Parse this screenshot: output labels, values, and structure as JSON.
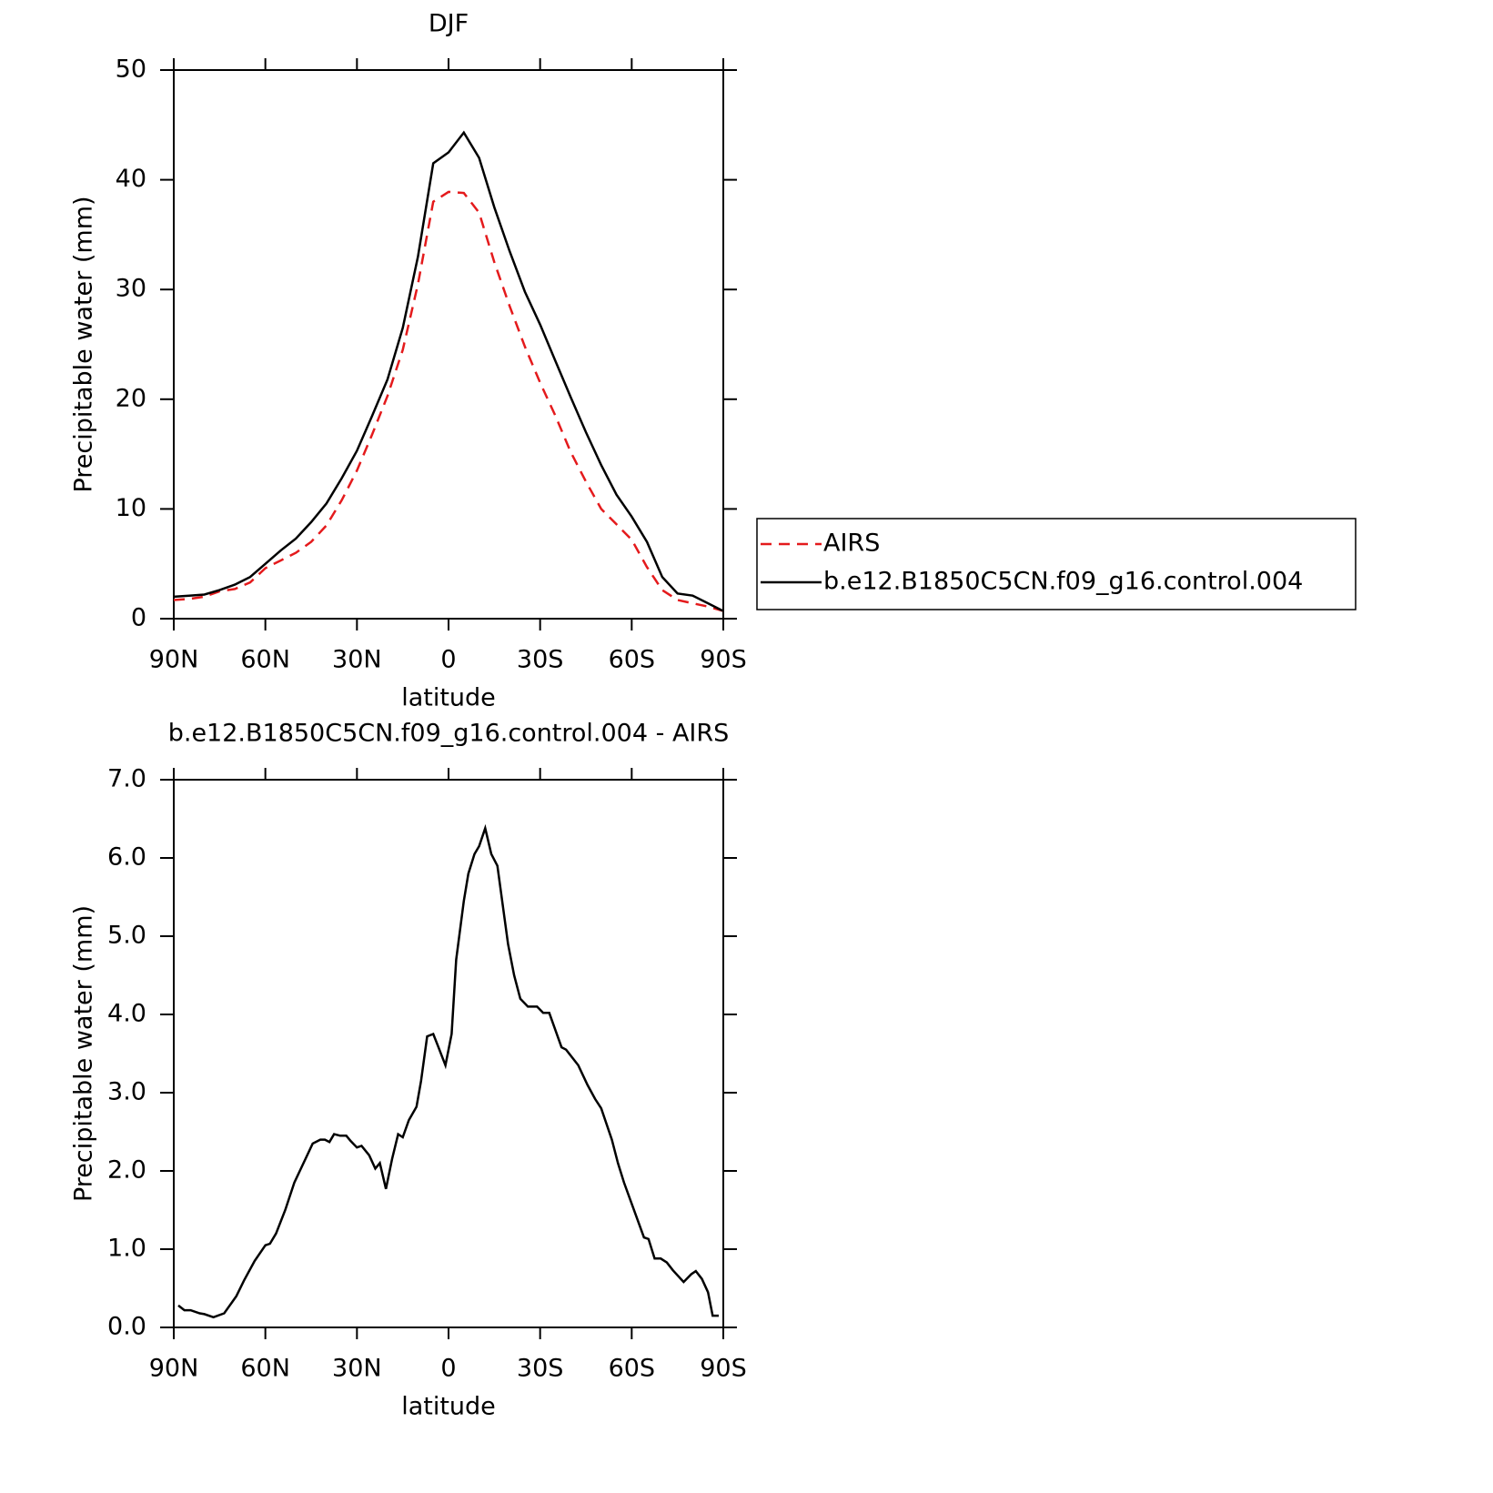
{
  "chart_data": [
    {
      "type": "line",
      "title": "DJF",
      "xlabel": "latitude",
      "ylabel": "Precipitable water (mm)",
      "x": [
        90,
        85,
        80,
        75,
        70,
        65,
        60,
        55,
        50,
        45,
        40,
        35,
        30,
        25,
        20,
        15,
        10,
        5,
        0,
        -5,
        -10,
        -15,
        -20,
        -25,
        -30,
        -35,
        -40,
        -45,
        -50,
        -55,
        -60,
        -65,
        -70,
        -75,
        -80,
        -85,
        -90
      ],
      "series": [
        {
          "name": "AIRS",
          "color": "#e41a1c",
          "line_style": "dashed",
          "values": [
            1.7,
            1.8,
            2.0,
            2.5,
            2.7,
            3.3,
            4.6,
            5.3,
            6.0,
            7.0,
            8.5,
            10.8,
            13.5,
            16.8,
            20.3,
            24.5,
            30.5,
            38.0,
            38.9,
            38.8,
            37,
            32.5,
            28.5,
            24.8,
            21.5,
            18.5,
            15.2,
            12.5,
            10,
            8.6,
            7.2,
            4.7,
            2.6,
            1.7,
            1.4,
            1.1,
            0.7
          ]
        },
        {
          "name": "b.e12.B1850C5CN.f09_g16.control.004",
          "color": "#000000",
          "line_style": "solid",
          "values": [
            2.0,
            2.1,
            2.2,
            2.6,
            3.1,
            3.8,
            5.0,
            6.2,
            7.3,
            8.8,
            10.5,
            12.8,
            15.3,
            18.5,
            21.8,
            26.5,
            33,
            41.5,
            42.5,
            44.3,
            42,
            37.5,
            33.5,
            29.8,
            26.8,
            23.5,
            20.2,
            17,
            14,
            11.3,
            9.3,
            7,
            3.8,
            2.3,
            2.1,
            1.4,
            0.7
          ]
        }
      ],
      "xlim": [
        90,
        -90
      ],
      "xticks": [
        {
          "value": 90,
          "label": "90N"
        },
        {
          "value": 60,
          "label": "60N"
        },
        {
          "value": 30,
          "label": "30N"
        },
        0,
        {
          "value": -30,
          "label": "30S"
        },
        {
          "value": -60,
          "label": "60S"
        },
        {
          "value": -90,
          "label": "90S"
        }
      ],
      "ylim": [
        0,
        50
      ],
      "yticks": [
        0,
        10,
        20,
        30,
        40,
        50
      ],
      "legend": "right"
    },
    {
      "type": "line",
      "title": "b.e12.B1850C5CN.f09_g16.control.004 - AIRS",
      "xlabel": "latitude",
      "ylabel": "Precipitable water (mm)",
      "x": [
        88.5,
        86.5,
        84.5,
        81.5,
        80,
        77,
        73.5,
        69.5,
        67,
        63.5,
        60,
        58.5,
        56.5,
        53.5,
        50.5,
        47.5,
        44.5,
        42,
        40.5,
        39,
        37.5,
        35.5,
        33.5,
        32,
        30,
        28.5,
        26,
        24,
        22.5,
        20.5,
        18.5,
        16.5,
        15,
        13,
        10.5,
        9,
        7,
        5,
        3.5,
        1,
        -1,
        -2.5,
        -5,
        -6.5,
        -8.5,
        -10,
        -12,
        -14,
        -16,
        -19.5,
        -21.5,
        -23.5,
        -26,
        -29,
        -31,
        -33,
        -37,
        -38.5,
        -42.5,
        -45.5,
        -48,
        -50,
        -53.5,
        -55.5,
        -57.5,
        -64,
        -65.5,
        -67.5,
        -69.5,
        -71.5,
        -73.5,
        -77,
        -79.5,
        -81,
        -83,
        -85,
        -86.5,
        -88.5
      ],
      "series": [
        {
          "color": "#000000",
          "line_style": "solid",
          "values": [
            0.28,
            0.22,
            0.22,
            0.18,
            0.17,
            0.13,
            0.18,
            0.4,
            0.6,
            0.85,
            1.05,
            1.07,
            1.2,
            1.5,
            1.85,
            2.1,
            2.35,
            2.4,
            2.4,
            2.37,
            2.47,
            2.45,
            2.45,
            2.38,
            2.3,
            2.32,
            2.2,
            2.03,
            2.1,
            1.77,
            2.15,
            2.47,
            2.43,
            2.65,
            2.82,
            3.15,
            3.72,
            3.75,
            3.6,
            3.35,
            3.75,
            4.7,
            5.45,
            5.8,
            6.05,
            6.15,
            6.38,
            6.05,
            5.9,
            4.9,
            4.5,
            4.2,
            4.1,
            4.1,
            4.02,
            4.02,
            3.58,
            3.55,
            3.35,
            3.1,
            2.92,
            2.8,
            2.4,
            2.1,
            1.85,
            1.15,
            1.13,
            0.88,
            0.88,
            0.83,
            0.73,
            0.58,
            0.68,
            0.72,
            0.62,
            0.45,
            0.15,
            0.15
          ]
        }
      ],
      "xlim": [
        90,
        -90
      ],
      "xticks": [
        {
          "value": 90,
          "label": "90N"
        },
        {
          "value": 60,
          "label": "60N"
        },
        {
          "value": 30,
          "label": "30N"
        },
        0,
        {
          "value": -30,
          "label": "30S"
        },
        {
          "value": -60,
          "label": "60S"
        },
        {
          "value": -90,
          "label": "90S"
        }
      ],
      "ylim": [
        0,
        7
      ],
      "yticks": [
        {
          "value": 0,
          "label": "0.0"
        },
        {
          "value": 1,
          "label": "1.0"
        },
        {
          "value": 2,
          "label": "2.0"
        },
        {
          "value": 3,
          "label": "3.0"
        },
        {
          "value": 4,
          "label": "4.0"
        },
        {
          "value": 5,
          "label": "5.0"
        },
        {
          "value": 6,
          "label": "6.0"
        },
        {
          "value": 7,
          "label": "7.0"
        }
      ]
    }
  ]
}
